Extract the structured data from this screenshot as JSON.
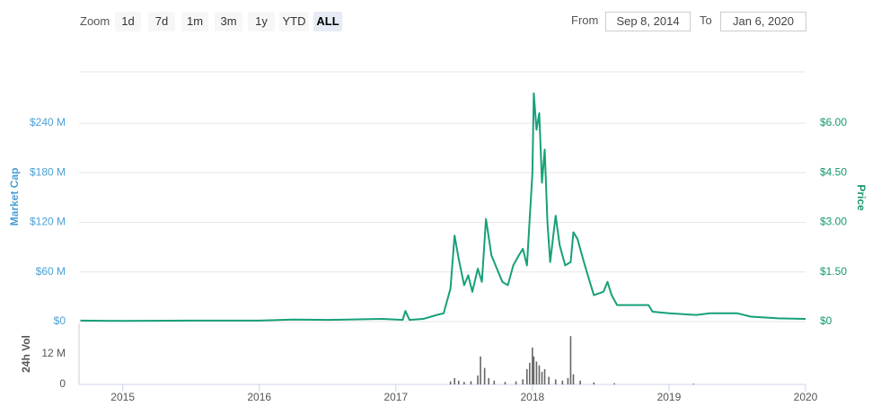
{
  "toolbar": {
    "zoom_label": "Zoom",
    "buttons": [
      "1d",
      "7d",
      "1m",
      "3m",
      "1y",
      "YTD",
      "ALL"
    ],
    "active_button": "ALL"
  },
  "range": {
    "from_label": "From",
    "from": "Sep 8, 2014",
    "to_label": "To",
    "to": "Jan 6, 2020"
  },
  "chart_data": [
    {
      "type": "line",
      "ylabel": "Market Cap",
      "y2label": "Price",
      "xlim": [
        2014.68,
        2020.0
      ],
      "ylim": [
        0,
        302000000
      ],
      "yticks": [
        {
          "value": 0,
          "label": "$0"
        },
        {
          "value": 60000000,
          "label": "$60 M"
        },
        {
          "value": 120000000,
          "label": "$120 M"
        },
        {
          "value": 180000000,
          "label": "$180 M"
        },
        {
          "value": 240000000,
          "label": "$240 M"
        }
      ],
      "y2lim": [
        0,
        7.55
      ],
      "y2ticks": [
        {
          "value": 0,
          "label": "$0"
        },
        {
          "value": 1.5,
          "label": "$1.50"
        },
        {
          "value": 3,
          "label": "$3.00"
        },
        {
          "value": 4.5,
          "label": "$4.50"
        },
        {
          "value": 6,
          "label": "$6.00"
        }
      ],
      "grid": true,
      "x": [
        2014.69,
        2015.0,
        2015.5,
        2016.0,
        2016.25,
        2016.5,
        2016.9,
        2017.05,
        2017.07,
        2017.1,
        2017.2,
        2017.3,
        2017.35,
        2017.4,
        2017.43,
        2017.46,
        2017.5,
        2017.53,
        2017.56,
        2017.6,
        2017.63,
        2017.66,
        2017.7,
        2017.74,
        2017.78,
        2017.82,
        2017.86,
        2017.9,
        2017.93,
        2017.96,
        2018.0,
        2018.01,
        2018.03,
        2018.05,
        2018.07,
        2018.09,
        2018.11,
        2018.13,
        2018.17,
        2018.2,
        2018.24,
        2018.28,
        2018.3,
        2018.33,
        2018.37,
        2018.42,
        2018.45,
        2018.52,
        2018.55,
        2018.58,
        2018.62,
        2018.7,
        2018.85,
        2018.88,
        2019.0,
        2019.2,
        2019.3,
        2019.5,
        2019.6,
        2019.8,
        2020.0
      ],
      "series": [
        {
          "color": "#17a07a",
          "axis": "y2",
          "values": [
            0.03,
            0.02,
            0.03,
            0.03,
            0.06,
            0.05,
            0.08,
            0.05,
            0.32,
            0.05,
            0.08,
            0.2,
            0.25,
            1.0,
            2.6,
            1.9,
            1.1,
            1.4,
            0.9,
            1.6,
            1.2,
            3.1,
            2.0,
            1.6,
            1.2,
            1.1,
            1.7,
            2.0,
            2.2,
            1.7,
            4.5,
            6.9,
            5.8,
            6.3,
            4.2,
            5.2,
            3.0,
            1.8,
            3.2,
            2.3,
            1.7,
            1.8,
            2.7,
            2.5,
            1.9,
            1.2,
            0.8,
            0.9,
            1.2,
            0.8,
            0.5,
            0.5,
            0.5,
            0.3,
            0.25,
            0.2,
            0.25,
            0.25,
            0.15,
            0.1,
            0.08
          ]
        }
      ]
    },
    {
      "type": "bar",
      "ylabel": "24h Vol",
      "color": "#666666",
      "xlim": [
        2014.68,
        2020.0
      ],
      "xticks": [
        2015,
        2016,
        2017,
        2018,
        2019,
        2020
      ],
      "ylim": [
        0,
        24000000
      ],
      "yticks": [
        0,
        {
          "value": 12000000,
          "label": "12 M"
        }
      ],
      "x": [
        2017.4,
        2017.43,
        2017.46,
        2017.5,
        2017.55,
        2017.6,
        2017.62,
        2017.65,
        2017.68,
        2017.72,
        2017.8,
        2017.88,
        2017.93,
        2017.96,
        2017.98,
        2018.0,
        2018.01,
        2018.03,
        2018.05,
        2018.07,
        2018.09,
        2018.12,
        2018.17,
        2018.22,
        2018.26,
        2018.28,
        2018.3,
        2018.35,
        2018.45,
        2018.6,
        2019.18
      ],
      "values": [
        1200000,
        2500000,
        1500000,
        1000000,
        1300000,
        3500000,
        11000000,
        6500000,
        2500000,
        1500000,
        1000000,
        1200000,
        2000000,
        6000000,
        8500000,
        14500000,
        11000000,
        9000000,
        7500000,
        5000000,
        6000000,
        3000000,
        2000000,
        1500000,
        2500000,
        19000000,
        4000000,
        1500000,
        800000,
        500000,
        300000
      ]
    }
  ]
}
